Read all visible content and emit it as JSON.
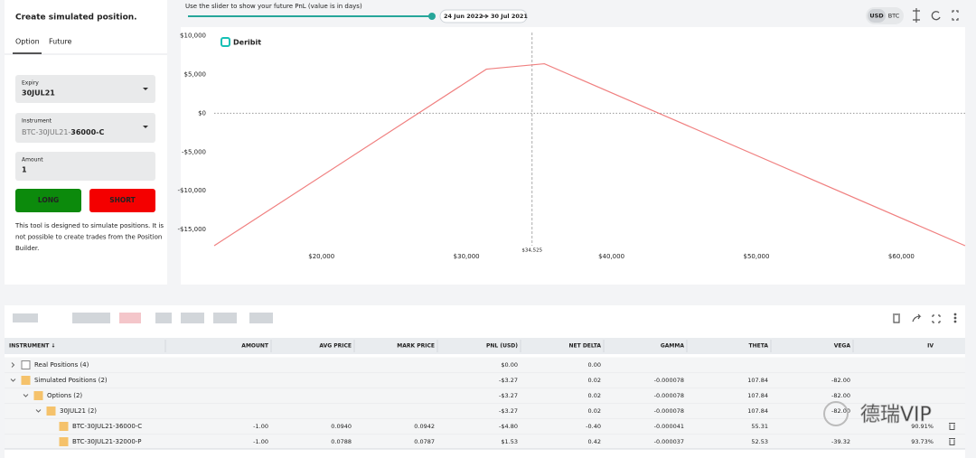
{
  "panel": {
    "title": "Create simulated position.",
    "tabs": [
      "Option",
      "Future"
    ],
    "fields": [
      {
        "label": "Expiry",
        "value": "30JUL21"
      },
      {
        "label": "Instrument",
        "value_prefix": "BTC-30JUL21-",
        "value_bold": "36000-C"
      },
      {
        "label": "Amount",
        "value": "1"
      }
    ],
    "buttons": [
      "LONG",
      "SHORT"
    ],
    "note": [
      "This tool is designed to simulate positions. It is",
      "not possible to create trades from the Position",
      "Builder."
    ]
  },
  "slider": {
    "caption": "Use the slider to show your future PnL (value is in days)",
    "from_date": "24 Jun 2022",
    "to_date": "30 Jul 2021"
  },
  "toggle": [
    "USD",
    "BTC"
  ],
  "chart_data": {
    "type": "line",
    "brand": "Deribit",
    "x": [
      12600,
      31375,
      35375,
      64400
    ],
    "series": [
      {
        "color": "#f08080",
        "values": [
          -17100,
          5700,
          6400,
          -17100
        ]
      }
    ],
    "xlim": [
      12600,
      64400
    ],
    "ylim": [
      -17100,
      10900
    ],
    "xticks": [
      {
        "value": 20000,
        "label": "$20,000"
      },
      {
        "value": 30000,
        "label": "$30,000"
      },
      {
        "value": 40000,
        "label": "$40,000"
      },
      {
        "value": 50000,
        "label": "$50,000"
      },
      {
        "value": 60000,
        "label": "$60,000"
      }
    ],
    "yticks": [
      {
        "value": 10000,
        "label": "$10,000"
      },
      {
        "value": 5000,
        "label": "$5,000"
      },
      {
        "value": 0,
        "label": "$0"
      },
      {
        "value": -5000,
        "label": "-$5,000"
      },
      {
        "value": -10000,
        "label": "-$10,000"
      },
      {
        "value": -15000,
        "label": "-$15,000"
      }
    ],
    "marker": {
      "value": 34525,
      "label": "$34,525"
    }
  },
  "table": {
    "columns": [
      "INSTRUMENT ↓",
      "AMOUNT",
      "AVG PRICE",
      "MARK PRICE",
      "PNL (USD)",
      "NET DELTA",
      "GAMMA",
      "THETA",
      "VEGA",
      "IV"
    ],
    "rows": [
      {
        "label": "Real Positions (4)",
        "pnl": "$0.00",
        "delta": "0.00"
      },
      {
        "label": "Simulated Positions (2)",
        "pnl": "-$3.27",
        "delta": "0.02",
        "gamma": "-0.000078",
        "theta": "107.84",
        "vega": "-82.00"
      },
      {
        "label": "Options (2)",
        "pnl": "-$3.27",
        "delta": "0.02",
        "gamma": "-0.000078",
        "theta": "107.84",
        "vega": "-82.00"
      },
      {
        "label": "30JUL21 (2)",
        "pnl": "-$3.27",
        "delta": "0.02",
        "gamma": "-0.000078",
        "theta": "107.84",
        "vega": "-82.00"
      },
      {
        "label": "BTC-30JUL21-36000-C",
        "amount": "-1.00",
        "avg": "0.0940",
        "mark": "0.0942",
        "pnl": "-$4.80",
        "delta": "-0.40",
        "gamma": "-0.000041",
        "theta": "55.31",
        "iv": "90.91%"
      },
      {
        "label": "BTC-30JUL21-32000-P",
        "amount": "-1.00",
        "avg": "0.0788",
        "mark": "0.0787",
        "pnl": "$1.53",
        "delta": "0.42",
        "gamma": "-0.000037",
        "theta": "52.53",
        "vega": "-39.32",
        "iv": "93.73%"
      }
    ]
  },
  "watermark": "德瑞VIP"
}
